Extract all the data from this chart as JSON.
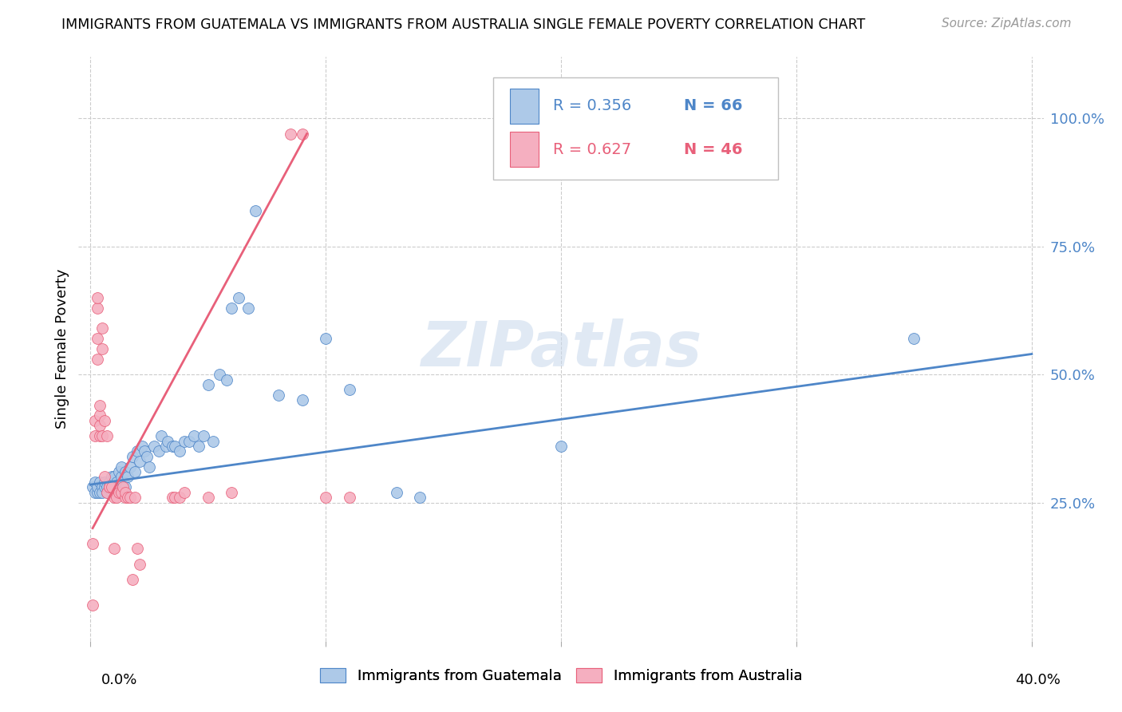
{
  "title": "IMMIGRANTS FROM GUATEMALA VS IMMIGRANTS FROM AUSTRALIA SINGLE FEMALE POVERTY CORRELATION CHART",
  "source": "Source: ZipAtlas.com",
  "ylabel": "Single Female Poverty",
  "legend_blue_r": "R = 0.356",
  "legend_blue_n": "N = 66",
  "legend_pink_r": "R = 0.627",
  "legend_pink_n": "N = 46",
  "watermark": "ZIPatlas",
  "blue_color": "#adc9e8",
  "pink_color": "#f5afc0",
  "line_blue": "#4e86c8",
  "line_pink": "#e8607a",
  "blue_scatter": [
    [
      0.001,
      0.28
    ],
    [
      0.002,
      0.27
    ],
    [
      0.002,
      0.29
    ],
    [
      0.003,
      0.27
    ],
    [
      0.003,
      0.28
    ],
    [
      0.004,
      0.27
    ],
    [
      0.004,
      0.29
    ],
    [
      0.005,
      0.28
    ],
    [
      0.005,
      0.27
    ],
    [
      0.006,
      0.28
    ],
    [
      0.006,
      0.29
    ],
    [
      0.007,
      0.27
    ],
    [
      0.007,
      0.28
    ],
    [
      0.008,
      0.28
    ],
    [
      0.008,
      0.29
    ],
    [
      0.009,
      0.27
    ],
    [
      0.009,
      0.3
    ],
    [
      0.01,
      0.28
    ],
    [
      0.01,
      0.3
    ],
    [
      0.011,
      0.29
    ],
    [
      0.012,
      0.28
    ],
    [
      0.012,
      0.31
    ],
    [
      0.013,
      0.3
    ],
    [
      0.013,
      0.32
    ],
    [
      0.014,
      0.29
    ],
    [
      0.015,
      0.28
    ],
    [
      0.015,
      0.31
    ],
    [
      0.016,
      0.3
    ],
    [
      0.017,
      0.32
    ],
    [
      0.018,
      0.34
    ],
    [
      0.019,
      0.31
    ],
    [
      0.02,
      0.35
    ],
    [
      0.021,
      0.33
    ],
    [
      0.022,
      0.36
    ],
    [
      0.023,
      0.35
    ],
    [
      0.024,
      0.34
    ],
    [
      0.025,
      0.32
    ],
    [
      0.027,
      0.36
    ],
    [
      0.029,
      0.35
    ],
    [
      0.03,
      0.38
    ],
    [
      0.032,
      0.36
    ],
    [
      0.033,
      0.37
    ],
    [
      0.035,
      0.36
    ],
    [
      0.036,
      0.36
    ],
    [
      0.038,
      0.35
    ],
    [
      0.04,
      0.37
    ],
    [
      0.042,
      0.37
    ],
    [
      0.044,
      0.38
    ],
    [
      0.046,
      0.36
    ],
    [
      0.048,
      0.38
    ],
    [
      0.05,
      0.48
    ],
    [
      0.052,
      0.37
    ],
    [
      0.055,
      0.5
    ],
    [
      0.058,
      0.49
    ],
    [
      0.06,
      0.63
    ],
    [
      0.063,
      0.65
    ],
    [
      0.067,
      0.63
    ],
    [
      0.07,
      0.82
    ],
    [
      0.08,
      0.46
    ],
    [
      0.09,
      0.45
    ],
    [
      0.1,
      0.57
    ],
    [
      0.11,
      0.47
    ],
    [
      0.13,
      0.27
    ],
    [
      0.14,
      0.26
    ],
    [
      0.2,
      0.36
    ],
    [
      0.35,
      0.57
    ]
  ],
  "pink_scatter": [
    [
      0.001,
      0.05
    ],
    [
      0.001,
      0.17
    ],
    [
      0.002,
      0.38
    ],
    [
      0.002,
      0.41
    ],
    [
      0.003,
      0.53
    ],
    [
      0.003,
      0.57
    ],
    [
      0.003,
      0.63
    ],
    [
      0.003,
      0.65
    ],
    [
      0.004,
      0.38
    ],
    [
      0.004,
      0.4
    ],
    [
      0.004,
      0.42
    ],
    [
      0.004,
      0.44
    ],
    [
      0.005,
      0.38
    ],
    [
      0.005,
      0.55
    ],
    [
      0.005,
      0.59
    ],
    [
      0.006,
      0.3
    ],
    [
      0.006,
      0.41
    ],
    [
      0.007,
      0.27
    ],
    [
      0.007,
      0.38
    ],
    [
      0.008,
      0.28
    ],
    [
      0.008,
      0.28
    ],
    [
      0.009,
      0.28
    ],
    [
      0.01,
      0.16
    ],
    [
      0.01,
      0.26
    ],
    [
      0.011,
      0.26
    ],
    [
      0.012,
      0.27
    ],
    [
      0.013,
      0.27
    ],
    [
      0.014,
      0.28
    ],
    [
      0.015,
      0.26
    ],
    [
      0.015,
      0.27
    ],
    [
      0.016,
      0.26
    ],
    [
      0.017,
      0.26
    ],
    [
      0.018,
      0.1
    ],
    [
      0.019,
      0.26
    ],
    [
      0.02,
      0.16
    ],
    [
      0.021,
      0.13
    ],
    [
      0.035,
      0.26
    ],
    [
      0.036,
      0.26
    ],
    [
      0.038,
      0.26
    ],
    [
      0.04,
      0.27
    ],
    [
      0.05,
      0.26
    ],
    [
      0.06,
      0.27
    ],
    [
      0.085,
      0.97
    ],
    [
      0.09,
      0.97
    ],
    [
      0.1,
      0.26
    ],
    [
      0.11,
      0.26
    ]
  ],
  "blue_line_x": [
    0.0,
    0.4
  ],
  "blue_line_y": [
    0.285,
    0.54
  ],
  "pink_line_x": [
    0.001,
    0.092
  ],
  "pink_line_y": [
    0.2,
    0.97
  ],
  "xlim": [
    -0.005,
    0.405
  ],
  "ylim": [
    -0.02,
    1.12
  ],
  "x_ticks": [
    0.0,
    0.1,
    0.2,
    0.3,
    0.4
  ],
  "y_ticks_right": [
    1.0,
    0.75,
    0.5,
    0.25
  ],
  "y_tick_labels_right": [
    "100.0%",
    "75.0%",
    "50.0%",
    "25.0%"
  ]
}
